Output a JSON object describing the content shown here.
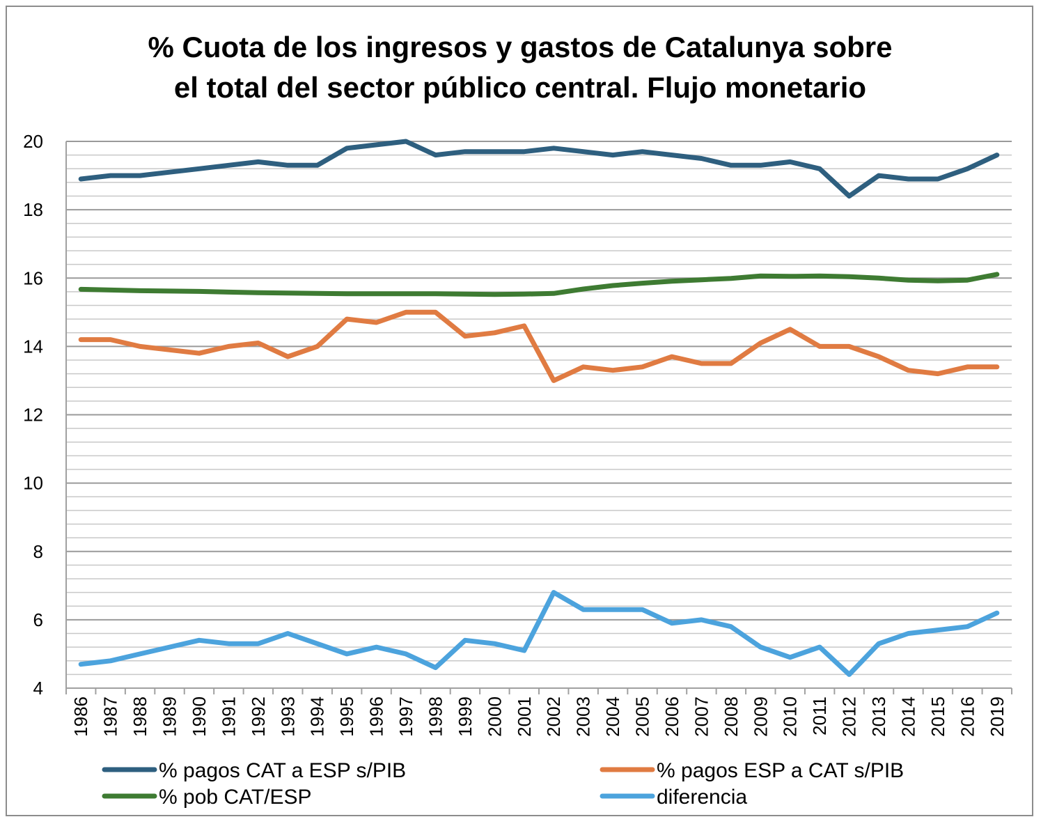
{
  "chart_data": {
    "type": "line",
    "title_lines": [
      "% Cuota de los ingresos y gastos de Catalunya sobre",
      "el total del sector público central. Flujo monetario"
    ],
    "xlabel": "",
    "ylabel": "",
    "ylim": [
      4,
      20
    ],
    "y_ticks": [
      4,
      6,
      8,
      10,
      12,
      14,
      16,
      18,
      20
    ],
    "y_tick_labels": [
      "4",
      "6",
      "8",
      "10",
      "12",
      "14",
      "16",
      "18",
      "20"
    ],
    "grid": true,
    "legend_position": "bottom",
    "categories": [
      "1986",
      "1987",
      "1988",
      "1989",
      "1990",
      "1991",
      "1992",
      "1993",
      "1994",
      "1995",
      "1996",
      "1997",
      "1998",
      "1999",
      "2000",
      "2001",
      "2002",
      "2003",
      "2004",
      "2005",
      "2006",
      "2007",
      "2008",
      "2009",
      "2010",
      "2011",
      "2012",
      "2013",
      "2014",
      "2015",
      "2016",
      "2019"
    ],
    "series": [
      {
        "name": "% pagos CAT a ESP s/PIB",
        "color": "#2e5f7f",
        "values": [
          18.9,
          19.0,
          19.0,
          19.1,
          19.2,
          19.3,
          19.4,
          19.3,
          19.3,
          19.8,
          19.9,
          20.0,
          19.6,
          19.7,
          19.7,
          19.7,
          19.8,
          19.7,
          19.6,
          19.7,
          19.6,
          19.5,
          19.3,
          19.3,
          19.4,
          19.2,
          18.4,
          19.0,
          18.9,
          18.9,
          19.2,
          19.6
        ]
      },
      {
        "name": "% pagos ESP a CAT s/PIB",
        "color": "#e07b42",
        "values": [
          14.2,
          14.2,
          14.0,
          13.9,
          13.8,
          14.0,
          14.1,
          13.7,
          14.0,
          14.8,
          14.7,
          15.0,
          15.0,
          14.3,
          14.4,
          14.6,
          13.0,
          13.4,
          13.3,
          13.4,
          13.7,
          13.5,
          13.5,
          14.1,
          14.5,
          14.0,
          14.0,
          13.7,
          13.3,
          13.2,
          13.4,
          13.4
        ]
      },
      {
        "name": "% pob CAT/ESP",
        "color": "#3e7b32",
        "values": [
          15.67,
          15.65,
          15.63,
          15.62,
          15.61,
          15.59,
          15.57,
          15.56,
          15.55,
          15.54,
          15.54,
          15.54,
          15.54,
          15.53,
          15.52,
          15.53,
          15.55,
          15.68,
          15.78,
          15.85,
          15.91,
          15.95,
          15.99,
          16.06,
          16.05,
          16.06,
          16.04,
          16.0,
          15.94,
          15.92,
          15.94,
          16.11
        ]
      },
      {
        "name": "diferencia",
        "color": "#4ca3dd",
        "values": [
          4.7,
          4.8,
          5.0,
          5.2,
          5.4,
          5.3,
          5.3,
          5.6,
          5.3,
          5.0,
          5.2,
          5.0,
          4.6,
          5.4,
          5.3,
          5.1,
          6.8,
          6.3,
          6.3,
          6.3,
          5.9,
          6.0,
          5.8,
          5.2,
          4.9,
          5.2,
          4.4,
          5.3,
          5.6,
          5.7,
          5.8,
          6.2
        ]
      }
    ]
  }
}
